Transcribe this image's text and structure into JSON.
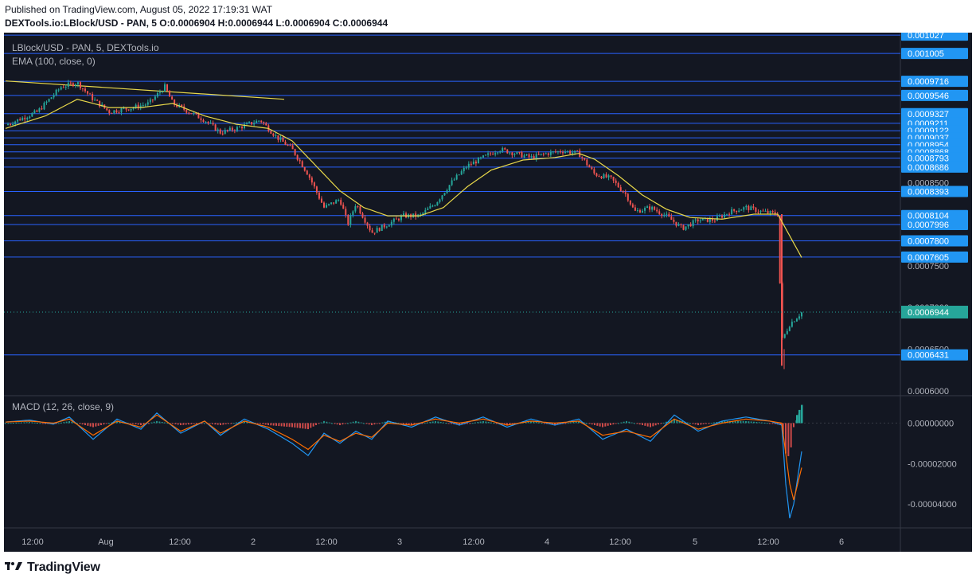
{
  "header": {
    "published": "Published on TradingView.com, August 05, 2022 17:19:31 WAT",
    "symbol_line": "DEXTools.io:LBlock/USD - PAN, 5 O:0.0006904 H:0.0006944 L:0.0006904 C:0.0006944"
  },
  "legend": {
    "symbol": "LBlock/USD - PAN, 5, DEXTools.io",
    "ema": "EMA (100, close, 0)",
    "macd": "MACD (12, 26, close, 9)"
  },
  "footer": {
    "brand": "TradingView"
  },
  "colors": {
    "background": "#131722",
    "up": "#26a69a",
    "down": "#ef5350",
    "ema": "#e8d84a",
    "hline": "#2962ff",
    "label_bg": "#2196f3",
    "last_price": "#26a69a",
    "macd_line": "#2196f3",
    "signal_line": "#ff6d00"
  },
  "chart_data": {
    "type": "candlestick",
    "interval": "5",
    "price_axis": {
      "range": [
        0.000595,
        0.00103
      ],
      "ticks": [
        "0.0008500",
        "0.0007500",
        "0.0007000",
        "0.0006500",
        "0.0006000"
      ],
      "horizontal_levels": [
        "0.001027",
        "0.001005",
        "0.0009716",
        "0.0009546",
        "0.0009327",
        "0.0009211",
        "0.0009122",
        "0.0009037",
        "0.0008954",
        "0.0008868",
        "0.0008793",
        "0.0008686",
        "0.0008393",
        "0.0008104",
        "0.0007996",
        "0.0007800",
        "0.0007605",
        "0.0006431"
      ],
      "last_price": "0.0006944"
    },
    "time_axis": {
      "ticks": [
        "12:00",
        "Aug",
        "12:00",
        "2",
        "12:00",
        "3",
        "12:00",
        "4",
        "12:00",
        "5",
        "12:00",
        "6"
      ]
    },
    "price_path": [
      {
        "t": 0.0,
        "p": 0.000919
      },
      {
        "t": 0.04,
        "p": 0.000935
      },
      {
        "t": 0.07,
        "p": 0.000965
      },
      {
        "t": 0.09,
        "p": 0.00097
      },
      {
        "t": 0.11,
        "p": 0.00095
      },
      {
        "t": 0.13,
        "p": 0.000935
      },
      {
        "t": 0.16,
        "p": 0.00094
      },
      {
        "t": 0.18,
        "p": 0.000945
      },
      {
        "t": 0.2,
        "p": 0.000965
      },
      {
        "t": 0.21,
        "p": 0.000945
      },
      {
        "t": 0.23,
        "p": 0.000935
      },
      {
        "t": 0.25,
        "p": 0.000925
      },
      {
        "t": 0.27,
        "p": 0.00091
      },
      {
        "t": 0.29,
        "p": 0.000915
      },
      {
        "t": 0.32,
        "p": 0.000925
      },
      {
        "t": 0.34,
        "p": 0.000905
      },
      {
        "t": 0.36,
        "p": 0.00089
      },
      {
        "t": 0.38,
        "p": 0.00086
      },
      {
        "t": 0.4,
        "p": 0.00082
      },
      {
        "t": 0.42,
        "p": 0.00083
      },
      {
        "t": 0.43,
        "p": 0.0008
      },
      {
        "t": 0.44,
        "p": 0.000825
      },
      {
        "t": 0.46,
        "p": 0.00079
      },
      {
        "t": 0.48,
        "p": 0.0008
      },
      {
        "t": 0.5,
        "p": 0.00081
      },
      {
        "t": 0.52,
        "p": 0.00081
      },
      {
        "t": 0.54,
        "p": 0.000825
      },
      {
        "t": 0.56,
        "p": 0.00085
      },
      {
        "t": 0.58,
        "p": 0.00087
      },
      {
        "t": 0.6,
        "p": 0.00088
      },
      {
        "t": 0.62,
        "p": 0.00089
      },
      {
        "t": 0.64,
        "p": 0.000885
      },
      {
        "t": 0.66,
        "p": 0.00088
      },
      {
        "t": 0.68,
        "p": 0.000885
      },
      {
        "t": 0.7,
        "p": 0.000888
      },
      {
        "t": 0.72,
        "p": 0.000885
      },
      {
        "t": 0.74,
        "p": 0.00086
      },
      {
        "t": 0.76,
        "p": 0.000855
      },
      {
        "t": 0.78,
        "p": 0.000835
      },
      {
        "t": 0.79,
        "p": 0.000815
      },
      {
        "t": 0.81,
        "p": 0.00082
      },
      {
        "t": 0.83,
        "p": 0.00081
      },
      {
        "t": 0.85,
        "p": 0.000795
      },
      {
        "t": 0.87,
        "p": 0.000805
      },
      {
        "t": 0.89,
        "p": 0.000805
      },
      {
        "t": 0.91,
        "p": 0.000815
      },
      {
        "t": 0.93,
        "p": 0.00082
      },
      {
        "t": 0.95,
        "p": 0.000815
      },
      {
        "t": 0.97,
        "p": 0.000812
      },
      {
        "t": 0.975,
        "p": 0.00066
      },
      {
        "t": 0.985,
        "p": 0.00068
      },
      {
        "t": 1.0,
        "p": 0.000694
      }
    ],
    "ema": [
      {
        "t": 0.0,
        "p": 0.000915
      },
      {
        "t": 0.05,
        "p": 0.00093
      },
      {
        "t": 0.09,
        "p": 0.00095
      },
      {
        "t": 0.13,
        "p": 0.00094
      },
      {
        "t": 0.17,
        "p": 0.00094
      },
      {
        "t": 0.21,
        "p": 0.000945
      },
      {
        "t": 0.25,
        "p": 0.00093
      },
      {
        "t": 0.29,
        "p": 0.00092
      },
      {
        "t": 0.33,
        "p": 0.000915
      },
      {
        "t": 0.36,
        "p": 0.0009
      },
      {
        "t": 0.39,
        "p": 0.00087
      },
      {
        "t": 0.42,
        "p": 0.00084
      },
      {
        "t": 0.45,
        "p": 0.00082
      },
      {
        "t": 0.48,
        "p": 0.00081
      },
      {
        "t": 0.52,
        "p": 0.00081
      },
      {
        "t": 0.55,
        "p": 0.00082
      },
      {
        "t": 0.58,
        "p": 0.000845
      },
      {
        "t": 0.61,
        "p": 0.000865
      },
      {
        "t": 0.65,
        "p": 0.000877
      },
      {
        "t": 0.69,
        "p": 0.00088
      },
      {
        "t": 0.72,
        "p": 0.000885
      },
      {
        "t": 0.74,
        "p": 0.000878
      },
      {
        "t": 0.77,
        "p": 0.000858
      },
      {
        "t": 0.8,
        "p": 0.000835
      },
      {
        "t": 0.83,
        "p": 0.000818
      },
      {
        "t": 0.86,
        "p": 0.000808
      },
      {
        "t": 0.9,
        "p": 0.000806
      },
      {
        "t": 0.94,
        "p": 0.000812
      },
      {
        "t": 0.97,
        "p": 0.000812
      },
      {
        "t": 1.0,
        "p": 0.00076
      }
    ],
    "trendline": {
      "from": {
        "t": 0.0,
        "p": 0.000972
      },
      "to": {
        "t": 0.35,
        "p": 0.00095
      }
    },
    "macd": {
      "axis_ticks": [
        "0.00000000",
        "-0.00002000",
        "-0.00004000"
      ],
      "range": [
        -4.9e-05,
        1e-05
      ],
      "macd_path": [
        {
          "t": 0.0,
          "v": 5e-07
        },
        {
          "t": 0.03,
          "v": 1.5e-06
        },
        {
          "t": 0.06,
          "v": -5e-07
        },
        {
          "t": 0.08,
          "v": 3e-06
        },
        {
          "t": 0.11,
          "v": -8e-06
        },
        {
          "t": 0.14,
          "v": 2e-06
        },
        {
          "t": 0.17,
          "v": -3e-06
        },
        {
          "t": 0.19,
          "v": 5e-06
        },
        {
          "t": 0.22,
          "v": -5e-06
        },
        {
          "t": 0.25,
          "v": 1e-06
        },
        {
          "t": 0.27,
          "v": -6e-06
        },
        {
          "t": 0.3,
          "v": 2e-06
        },
        {
          "t": 0.33,
          "v": -3e-06
        },
        {
          "t": 0.36,
          "v": -1e-05
        },
        {
          "t": 0.38,
          "v": -1.6e-05
        },
        {
          "t": 0.4,
          "v": -5e-06
        },
        {
          "t": 0.42,
          "v": -1e-05
        },
        {
          "t": 0.44,
          "v": -4e-06
        },
        {
          "t": 0.46,
          "v": -8e-06
        },
        {
          "t": 0.48,
          "v": 1e-06
        },
        {
          "t": 0.51,
          "v": -2e-06
        },
        {
          "t": 0.54,
          "v": 3e-06
        },
        {
          "t": 0.57,
          "v": -1e-06
        },
        {
          "t": 0.6,
          "v": 3e-06
        },
        {
          "t": 0.63,
          "v": -2e-06
        },
        {
          "t": 0.66,
          "v": 2e-06
        },
        {
          "t": 0.69,
          "v": -1e-06
        },
        {
          "t": 0.72,
          "v": 2e-06
        },
        {
          "t": 0.75,
          "v": -8e-06
        },
        {
          "t": 0.78,
          "v": -3e-06
        },
        {
          "t": 0.81,
          "v": -9e-06
        },
        {
          "t": 0.84,
          "v": 4e-06
        },
        {
          "t": 0.87,
          "v": -4e-06
        },
        {
          "t": 0.9,
          "v": 1e-06
        },
        {
          "t": 0.93,
          "v": 3e-06
        },
        {
          "t": 0.96,
          "v": 1e-06
        },
        {
          "t": 0.975,
          "v": -1e-06
        },
        {
          "t": 0.98,
          "v": -3e-05
        },
        {
          "t": 0.985,
          "v": -4.7e-05
        },
        {
          "t": 0.99,
          "v": -4e-05
        },
        {
          "t": 1.0,
          "v": -1.4e-05
        }
      ],
      "signal_path": [
        {
          "t": 0.0,
          "v": 5e-07
        },
        {
          "t": 0.03,
          "v": 1e-06
        },
        {
          "t": 0.06,
          "v": 0.0
        },
        {
          "t": 0.08,
          "v": 2e-06
        },
        {
          "t": 0.11,
          "v": -6e-06
        },
        {
          "t": 0.14,
          "v": 1e-06
        },
        {
          "t": 0.17,
          "v": -2e-06
        },
        {
          "t": 0.19,
          "v": 4e-06
        },
        {
          "t": 0.22,
          "v": -4e-06
        },
        {
          "t": 0.25,
          "v": 1e-06
        },
        {
          "t": 0.27,
          "v": -5e-06
        },
        {
          "t": 0.3,
          "v": 1e-06
        },
        {
          "t": 0.33,
          "v": -2e-06
        },
        {
          "t": 0.36,
          "v": -8e-06
        },
        {
          "t": 0.38,
          "v": -1.3e-05
        },
        {
          "t": 0.4,
          "v": -6e-06
        },
        {
          "t": 0.42,
          "v": -9e-06
        },
        {
          "t": 0.44,
          "v": -5e-06
        },
        {
          "t": 0.46,
          "v": -7e-06
        },
        {
          "t": 0.48,
          "v": 0.0
        },
        {
          "t": 0.51,
          "v": -1e-06
        },
        {
          "t": 0.54,
          "v": 2e-06
        },
        {
          "t": 0.57,
          "v": 0.0
        },
        {
          "t": 0.6,
          "v": 2e-06
        },
        {
          "t": 0.63,
          "v": -1e-06
        },
        {
          "t": 0.66,
          "v": 1e-06
        },
        {
          "t": 0.69,
          "v": 0.0
        },
        {
          "t": 0.72,
          "v": 1e-06
        },
        {
          "t": 0.75,
          "v": -6e-06
        },
        {
          "t": 0.78,
          "v": -4e-06
        },
        {
          "t": 0.81,
          "v": -7e-06
        },
        {
          "t": 0.84,
          "v": 2e-06
        },
        {
          "t": 0.87,
          "v": -3e-06
        },
        {
          "t": 0.9,
          "v": 0.0
        },
        {
          "t": 0.93,
          "v": 2e-06
        },
        {
          "t": 0.96,
          "v": 1e-06
        },
        {
          "t": 0.975,
          "v": 0.0
        },
        {
          "t": 0.98,
          "v": -1.5e-05
        },
        {
          "t": 0.985,
          "v": -3e-05
        },
        {
          "t": 0.99,
          "v": -3.8e-05
        },
        {
          "t": 1.0,
          "v": -2.2e-05
        }
      ]
    }
  }
}
